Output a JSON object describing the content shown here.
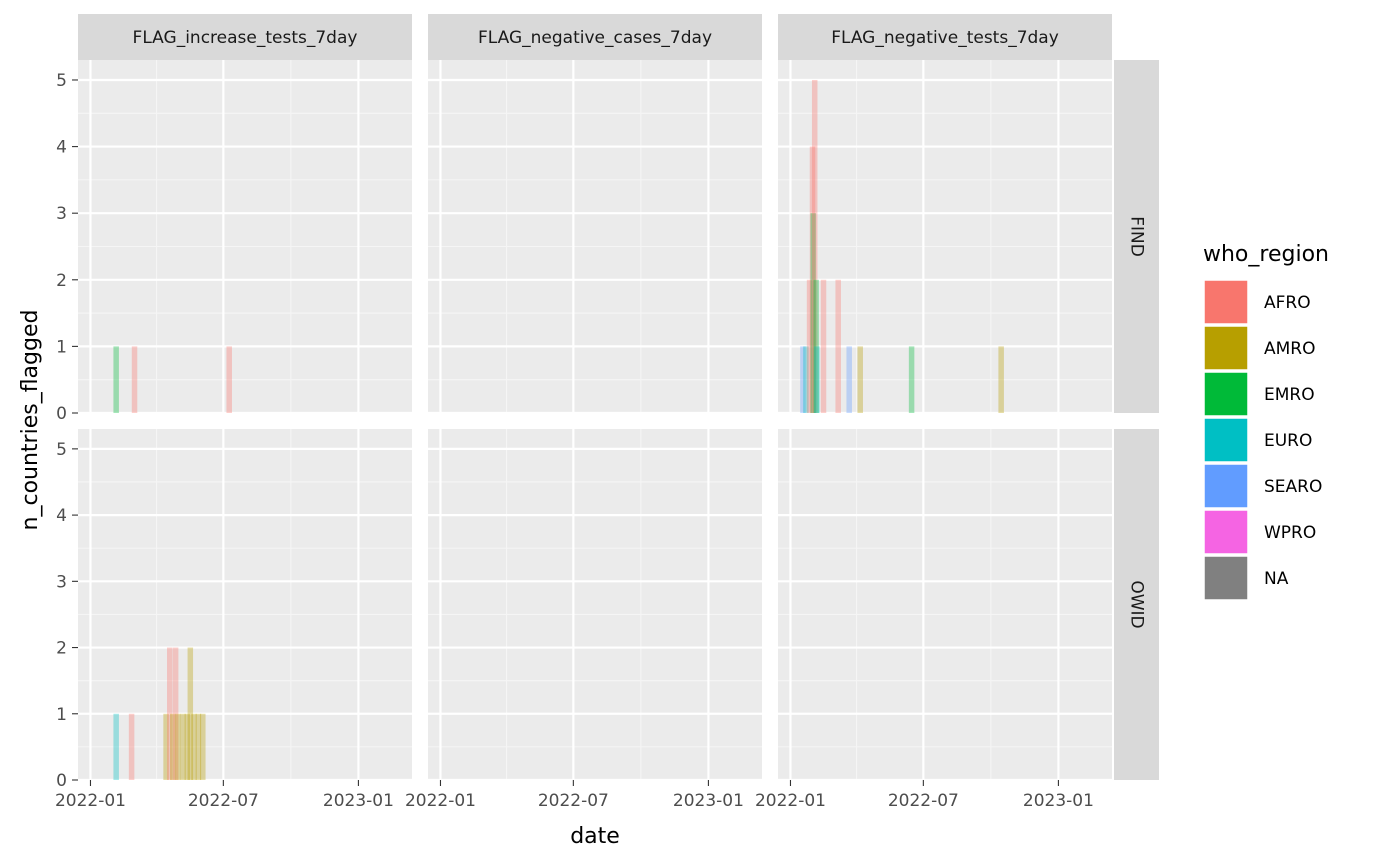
{
  "chart_data": {
    "type": "bar",
    "xlabel": "date",
    "ylabel": "n_countries_flagged",
    "ylim": [
      0,
      5.3
    ],
    "yticks": [
      "0",
      "1",
      "2",
      "3",
      "4",
      "5"
    ],
    "xlim": [
      "2021-12-15",
      "2023-03-15"
    ],
    "xtick_dates": [
      "2022-01-01",
      "2022-07-01",
      "2023-01-01"
    ],
    "xtick_labels": [
      "2022-01",
      "2022-07",
      "2023-01"
    ],
    "grid": true,
    "legend_position": "right",
    "legend": {
      "title": "who_region",
      "entries": [
        {
          "label": "AFRO",
          "color": "#F8766D"
        },
        {
          "label": "AMRO",
          "color": "#B79F00"
        },
        {
          "label": "EMRO",
          "color": "#00BA38"
        },
        {
          "label": "EURO",
          "color": "#00BFC4"
        },
        {
          "label": "SEARO",
          "color": "#619CFF"
        },
        {
          "label": "WPRO",
          "color": "#F564E3"
        },
        {
          "label": "NA",
          "color": "#808080"
        }
      ]
    },
    "columns": [
      "FLAG_increase_tests_7day",
      "FLAG_negative_cases_7day",
      "FLAG_negative_tests_7day"
    ],
    "rows": [
      "FIND",
      "OWID"
    ],
    "panels": [
      {
        "column": "FLAG_increase_tests_7day",
        "row": "FIND",
        "bars": [
          {
            "date": "2022-02-05",
            "value": 1,
            "region": "EMRO"
          },
          {
            "date": "2022-03-02",
            "value": 1,
            "region": "AFRO"
          },
          {
            "date": "2022-07-09",
            "value": 1,
            "region": "AFRO"
          }
        ]
      },
      {
        "column": "FLAG_negative_cases_7day",
        "row": "FIND",
        "bars": []
      },
      {
        "column": "FLAG_negative_tests_7day",
        "row": "FIND",
        "bars": [
          {
            "date": "2022-01-18",
            "value": 1,
            "region": "SEARO"
          },
          {
            "date": "2022-01-22",
            "value": 1,
            "region": "EURO"
          },
          {
            "date": "2022-01-27",
            "value": 2,
            "region": "AFRO"
          },
          {
            "date": "2022-01-31",
            "value": 4,
            "region": "AFRO"
          },
          {
            "date": "2022-02-01",
            "value": 3,
            "region": "EMRO"
          },
          {
            "date": "2022-02-03",
            "value": 5,
            "region": "AFRO"
          },
          {
            "date": "2022-02-05",
            "value": 2,
            "region": "EMRO"
          },
          {
            "date": "2022-02-06",
            "value": 1,
            "region": "EURO"
          },
          {
            "date": "2022-02-15",
            "value": 2,
            "region": "AFRO"
          },
          {
            "date": "2022-03-07",
            "value": 2,
            "region": "AFRO"
          },
          {
            "date": "2022-03-22",
            "value": 1,
            "region": "SEARO"
          },
          {
            "date": "2022-04-06",
            "value": 1,
            "region": "AMRO"
          },
          {
            "date": "2022-06-15",
            "value": 1,
            "region": "EMRO"
          },
          {
            "date": "2022-10-15",
            "value": 1,
            "region": "AMRO"
          }
        ]
      },
      {
        "column": "FLAG_increase_tests_7day",
        "row": "OWID",
        "bars": [
          {
            "date": "2022-02-05",
            "value": 1,
            "region": "EURO"
          },
          {
            "date": "2022-02-26",
            "value": 1,
            "region": "AFRO"
          },
          {
            "date": "2022-04-14",
            "value": 1,
            "region": "AMRO"
          },
          {
            "date": "2022-04-19",
            "value": 2,
            "region": "AFRO"
          },
          {
            "date": "2022-04-23",
            "value": 1,
            "region": "AMRO"
          },
          {
            "date": "2022-04-27",
            "value": 2,
            "region": "AFRO"
          },
          {
            "date": "2022-04-30",
            "value": 1,
            "region": "AMRO"
          },
          {
            "date": "2022-05-07",
            "value": 1,
            "region": "AMRO"
          },
          {
            "date": "2022-05-13",
            "value": 1,
            "region": "AMRO"
          },
          {
            "date": "2022-05-17",
            "value": 2,
            "region": "AMRO"
          },
          {
            "date": "2022-05-22",
            "value": 1,
            "region": "AMRO"
          },
          {
            "date": "2022-05-28",
            "value": 1,
            "region": "AMRO"
          },
          {
            "date": "2022-06-03",
            "value": 1,
            "region": "AMRO"
          }
        ]
      },
      {
        "column": "FLAG_negative_cases_7day",
        "row": "OWID",
        "bars": []
      },
      {
        "column": "FLAG_negative_tests_7day",
        "row": "OWID",
        "bars": []
      }
    ]
  }
}
